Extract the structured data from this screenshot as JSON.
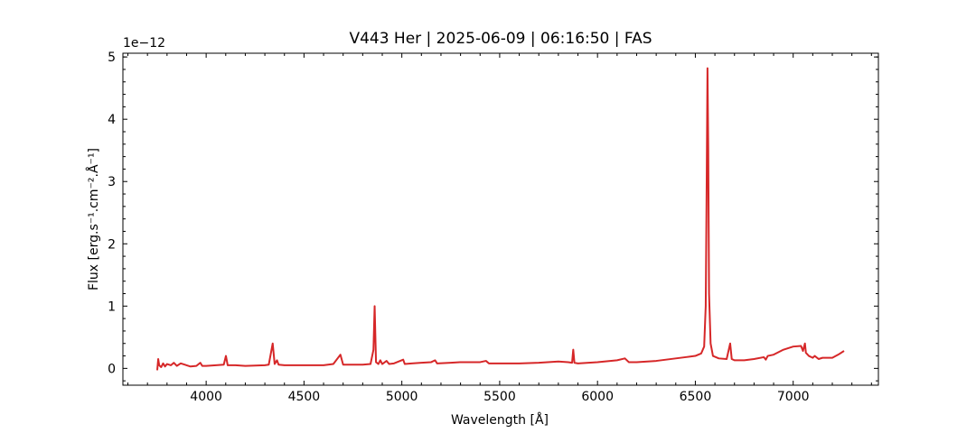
{
  "chart_data": {
    "type": "line",
    "title": "V443 Her | 2025-06-09 | 06:16:50 | FAS",
    "x_label": "Wavelength [Å]",
    "y_label": "Flux [erg.s⁻¹.cm⁻².Å⁻¹]",
    "y_offset_label": "1e−12",
    "x": [
      3750,
      3755,
      3760,
      3770,
      3780,
      3790,
      3800,
      3820,
      3835,
      3850,
      3870,
      3890,
      3900,
      3920,
      3950,
      3970,
      3980,
      4000,
      4050,
      4090,
      4101,
      4110,
      4150,
      4200,
      4300,
      4320,
      4340,
      4350,
      4362,
      4370,
      4400,
      4500,
      4600,
      4650,
      4686,
      4700,
      4750,
      4800,
      4840,
      4855,
      4861,
      4868,
      4880,
      4890,
      4900,
      4922,
      4935,
      4960,
      5007,
      5015,
      5050,
      5100,
      5150,
      5170,
      5180,
      5250,
      5300,
      5350,
      5400,
      5430,
      5445,
      5500,
      5600,
      5700,
      5800,
      5850,
      5870,
      5876,
      5882,
      5900,
      6000,
      6100,
      6140,
      6160,
      6200,
      6300,
      6350,
      6400,
      6450,
      6500,
      6530,
      6545,
      6553,
      6558,
      6562,
      6566,
      6570,
      6578,
      6590,
      6620,
      6660,
      6678,
      6686,
      6700,
      6750,
      6800,
      6850,
      6860,
      6870,
      6900,
      6950,
      7000,
      7040,
      7050,
      7060,
      7065,
      7080,
      7100,
      7110,
      7130,
      7150,
      7200,
      7230,
      7260
    ],
    "series": [
      {
        "color": "#d62728",
        "values": [
          -0.03,
          0.15,
          0.05,
          0.02,
          0.08,
          0.03,
          0.07,
          0.05,
          0.09,
          0.04,
          0.08,
          0.06,
          0.05,
          0.03,
          0.04,
          0.09,
          0.04,
          0.04,
          0.05,
          0.06,
          0.2,
          0.05,
          0.05,
          0.04,
          0.05,
          0.06,
          0.4,
          0.07,
          0.13,
          0.06,
          0.05,
          0.05,
          0.05,
          0.07,
          0.22,
          0.06,
          0.06,
          0.06,
          0.07,
          0.3,
          1.0,
          0.1,
          0.07,
          0.13,
          0.07,
          0.12,
          0.07,
          0.08,
          0.14,
          0.07,
          0.08,
          0.09,
          0.1,
          0.13,
          0.08,
          0.09,
          0.1,
          0.1,
          0.1,
          0.12,
          0.08,
          0.08,
          0.08,
          0.09,
          0.11,
          0.1,
          0.09,
          0.3,
          0.09,
          0.08,
          0.1,
          0.13,
          0.16,
          0.1,
          0.1,
          0.12,
          0.14,
          0.16,
          0.18,
          0.2,
          0.24,
          0.35,
          1.0,
          3.0,
          4.82,
          3.5,
          1.2,
          0.4,
          0.2,
          0.16,
          0.15,
          0.4,
          0.15,
          0.13,
          0.13,
          0.15,
          0.18,
          0.14,
          0.2,
          0.22,
          0.3,
          0.35,
          0.36,
          0.28,
          0.4,
          0.25,
          0.2,
          0.17,
          0.2,
          0.15,
          0.17,
          0.17,
          0.22,
          0.28
        ]
      }
    ],
    "xlim": [
      3574.5,
      7435.5
    ],
    "ylim": [
      -0.27,
      5.06
    ],
    "xticks": [
      4000,
      4500,
      5000,
      5500,
      6000,
      6500,
      7000
    ],
    "yticks": [
      0,
      1,
      2,
      3,
      4,
      5
    ],
    "xminorticks": [
      3600,
      3700,
      3800,
      3900,
      4100,
      4200,
      4300,
      4400,
      4600,
      4700,
      4800,
      4900,
      5100,
      5200,
      5300,
      5400,
      5600,
      5700,
      5800,
      5900,
      6100,
      6200,
      6300,
      6400,
      6600,
      6700,
      6800,
      6900,
      7100,
      7200,
      7300,
      7400
    ],
    "yminorticks": [
      -0.2,
      0.2,
      0.4,
      0.6,
      0.8,
      1.2,
      1.4,
      1.6,
      1.8,
      2.2,
      2.4,
      2.6,
      2.8,
      3.2,
      3.4,
      3.6,
      3.8,
      4.2,
      4.4,
      4.6,
      4.8,
      5.0
    ],
    "grid": false
  }
}
